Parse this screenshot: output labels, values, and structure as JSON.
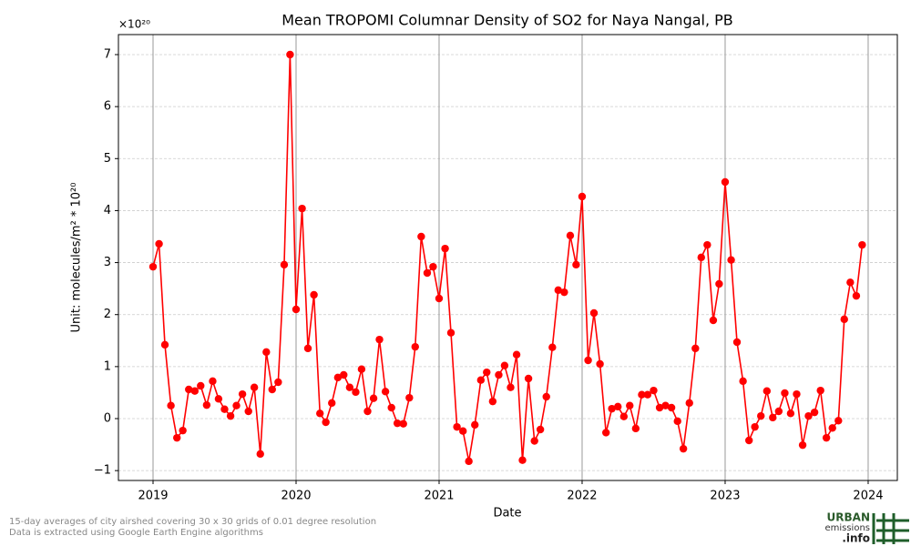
{
  "chart_data": {
    "type": "line",
    "title": "Mean TROPOMI Columnar Density of SO2 for Naya Nangal, PB",
    "x_label": "Date",
    "y_label": "Unit: molecules/m² * 10²⁰",
    "offset_text": "×10²⁰",
    "footnotes": [
      "15-day averages of city airshed covering 30 x 30 grids of 0.01 degree resolution",
      "Data is extracted using Google Earth Engine algorithms"
    ],
    "logo": [
      "URBAN",
      "emissions",
      ".info"
    ],
    "x": [
      2019,
      2019.042,
      2019.083,
      2019.125,
      2019.167,
      2019.208,
      2019.25,
      2019.292,
      2019.333,
      2019.375,
      2019.417,
      2019.458,
      2019.5,
      2019.542,
      2019.583,
      2019.625,
      2019.667,
      2019.708,
      2019.75,
      2019.792,
      2019.833,
      2019.875,
      2019.917,
      2019.958,
      2020,
      2020.042,
      2020.083,
      2020.125,
      2020.167,
      2020.208,
      2020.25,
      2020.292,
      2020.333,
      2020.375,
      2020.417,
      2020.458,
      2020.5,
      2020.542,
      2020.583,
      2020.625,
      2020.667,
      2020.708,
      2020.75,
      2020.792,
      2020.833,
      2020.875,
      2020.917,
      2020.958,
      2021,
      2021.042,
      2021.083,
      2021.125,
      2021.167,
      2021.208,
      2021.25,
      2021.292,
      2021.333,
      2021.375,
      2021.417,
      2021.458,
      2021.5,
      2021.542,
      2021.583,
      2021.625,
      2021.667,
      2021.708,
      2021.75,
      2021.792,
      2021.833,
      2021.875,
      2021.917,
      2021.958,
      2022,
      2022.042,
      2022.083,
      2022.125,
      2022.167,
      2022.208,
      2022.25,
      2022.292,
      2022.333,
      2022.375,
      2022.417,
      2022.458,
      2022.5,
      2022.542,
      2022.583,
      2022.625,
      2022.667,
      2022.708,
      2022.75,
      2022.792,
      2022.833,
      2022.875,
      2022.917,
      2022.958,
      2023,
      2023.042,
      2023.083,
      2023.125,
      2023.167,
      2023.208,
      2023.25,
      2023.292,
      2023.333,
      2023.375,
      2023.417,
      2023.458,
      2023.5,
      2023.542,
      2023.583,
      2023.625,
      2023.667,
      2023.708,
      2023.75,
      2023.792,
      2023.833,
      2023.875,
      2023.917,
      2023.958
    ],
    "series": [
      {
        "color": "#ff0000",
        "values": [
          2.92,
          3.36,
          1.42,
          0.25,
          -0.37,
          -0.23,
          0.56,
          0.53,
          0.63,
          0.26,
          0.72,
          0.38,
          0.18,
          0.05,
          0.25,
          0.47,
          0.14,
          0.6,
          -0.68,
          1.28,
          0.56,
          0.7,
          2.96,
          7.0,
          2.1,
          4.04,
          1.35,
          2.38,
          0.1,
          -0.07,
          0.3,
          0.79,
          0.84,
          0.6,
          0.51,
          0.95,
          0.14,
          0.39,
          1.52,
          0.52,
          0.21,
          -0.09,
          -0.1,
          0.4,
          1.38,
          3.5,
          2.8,
          2.92,
          2.31,
          3.27,
          1.65,
          -0.16,
          -0.24,
          -0.82,
          -0.12,
          0.74,
          0.89,
          0.33,
          0.84,
          1.02,
          0.6,
          1.23,
          -0.8,
          0.77,
          -0.43,
          -0.21,
          0.42,
          1.37,
          2.47,
          2.43,
          3.52,
          2.96,
          4.27,
          1.12,
          2.03,
          1.05,
          -0.27,
          0.19,
          0.23,
          0.04,
          0.25,
          -0.19,
          0.46,
          0.46,
          0.54,
          0.21,
          0.25,
          0.21,
          -0.05,
          -0.58,
          0.3,
          1.35,
          3.1,
          3.34,
          1.89,
          2.59,
          4.55,
          3.05,
          1.47,
          0.72,
          -0.42,
          -0.16,
          0.05,
          0.53,
          0.02,
          0.14,
          0.49,
          0.1,
          0.47,
          -0.51,
          0.05,
          0.12,
          0.54,
          -0.37,
          -0.18,
          -0.04,
          1.91,
          2.62,
          2.36,
          3.34
        ]
      }
    ],
    "xlim": [
      2018.758,
      2024.204
    ],
    "ylim": [
      -1.19,
      7.385
    ],
    "xticks": [
      2019,
      2020,
      2021,
      2022,
      2023,
      2024
    ],
    "yticks": [
      {
        "value": -1,
        "label": "−1"
      },
      0,
      1,
      2,
      3,
      4,
      5,
      6,
      7
    ],
    "grid": true
  }
}
